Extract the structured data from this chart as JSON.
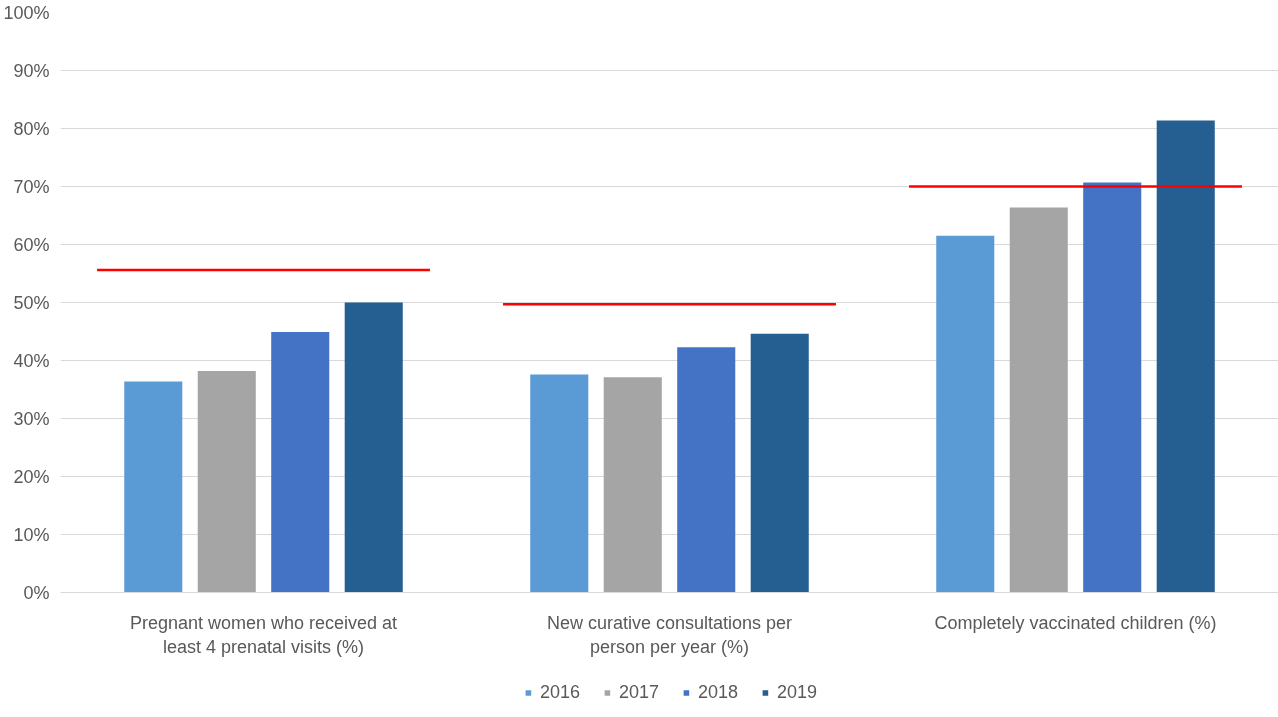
{
  "chart_data": {
    "type": "bar",
    "categories": [
      "Pregnant women who received at least 4 prenatal visits (%)",
      "New curative consultations per person per year (%)",
      "Completely vaccinated children (%)"
    ],
    "series": [
      {
        "name": "2016",
        "color": "#5b9bd5",
        "values": [
          36.4,
          37.6,
          61.5
        ]
      },
      {
        "name": "2017",
        "color": "#a5a5a5",
        "values": [
          38.2,
          37.1,
          66.4
        ]
      },
      {
        "name": "2018",
        "color": "#4472c4",
        "values": [
          44.9,
          42.3,
          70.7
        ]
      },
      {
        "name": "2019",
        "color": "#255e91",
        "values": [
          50.0,
          44.6,
          81.4
        ]
      }
    ],
    "ref_lines": [
      {
        "axis": "y",
        "value": 55.6,
        "color": "#ff0000"
      },
      {
        "axis": "y",
        "value": 49.7,
        "color": "#ff0000"
      },
      {
        "axis": "y",
        "value": 70.0,
        "color": "#ff0000"
      }
    ],
    "ylim": [
      0,
      100
    ],
    "yticks": [
      {
        "value": 0,
        "label": "0%"
      },
      {
        "value": 10,
        "label": "10%"
      },
      {
        "value": 20,
        "label": "20%"
      },
      {
        "value": 30,
        "label": "30%"
      },
      {
        "value": 40,
        "label": "40%"
      },
      {
        "value": 50,
        "label": "50%"
      },
      {
        "value": 60,
        "label": "60%"
      },
      {
        "value": 70,
        "label": "70%"
      },
      {
        "value": 80,
        "label": "80%"
      },
      {
        "value": 90,
        "label": "90%"
      },
      {
        "value": 100,
        "label": "100%"
      }
    ],
    "grid": "y",
    "legend": "bottom"
  }
}
